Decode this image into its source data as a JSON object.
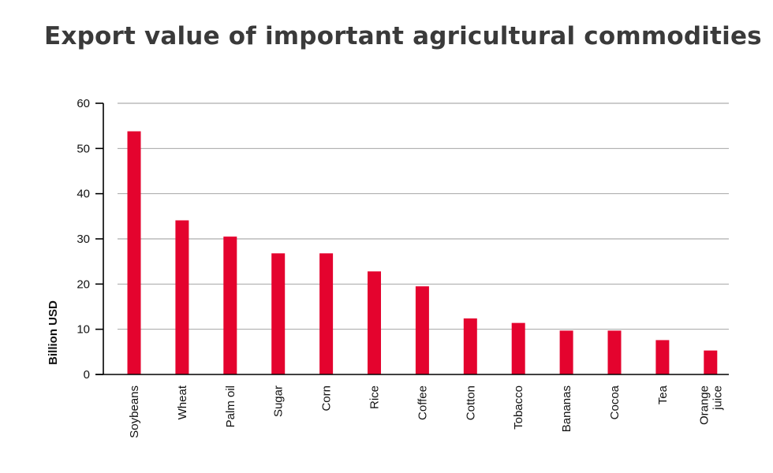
{
  "chart_data": {
    "type": "bar",
    "title": "Export value of important agricultural commodities",
    "xlabel": "",
    "ylabel": "Billion USD",
    "categories": [
      [
        "Soybeans"
      ],
      [
        "Wheat"
      ],
      [
        "Palm oil"
      ],
      [
        "Sugar"
      ],
      [
        "Corn"
      ],
      [
        "Rice"
      ],
      [
        "Coffee"
      ],
      [
        "Cotton"
      ],
      [
        "Tobacco"
      ],
      [
        "Bananas"
      ],
      [
        "Cocoa"
      ],
      [
        "Tea"
      ],
      [
        "Orange",
        "juice"
      ]
    ],
    "values": [
      53.8,
      34.1,
      30.5,
      26.8,
      26.8,
      22.8,
      19.5,
      12.4,
      11.4,
      9.7,
      9.7,
      7.6,
      5.3
    ],
    "ylim": [
      0,
      60
    ],
    "yticks": [
      0,
      10,
      20,
      30,
      40,
      50,
      60
    ],
    "grid": true,
    "bar_color": "#e4032e",
    "grid_color": "#999999"
  }
}
